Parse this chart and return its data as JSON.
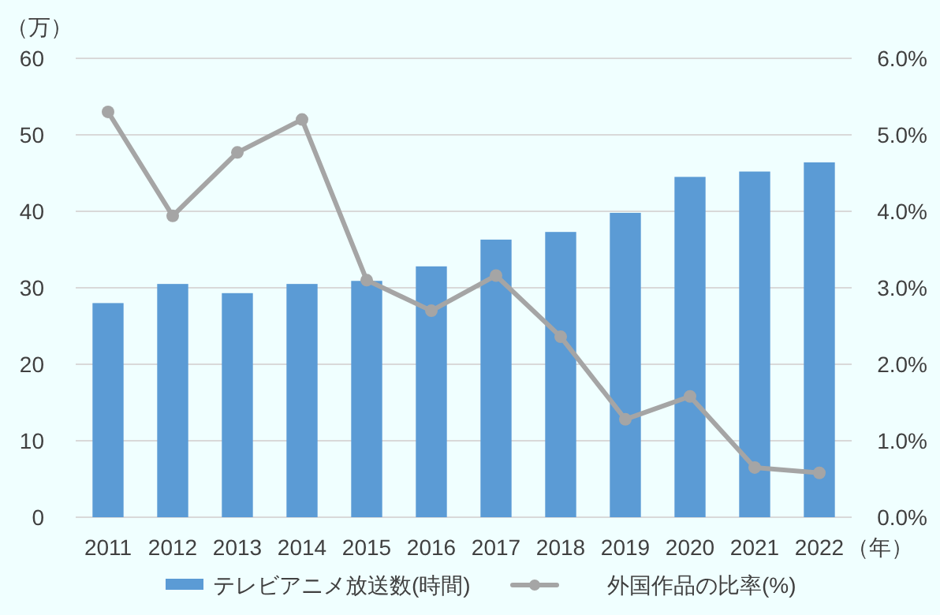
{
  "chart_data": {
    "type": "bar",
    "categories": [
      "2011",
      "2012",
      "2013",
      "2014",
      "2015",
      "2016",
      "2017",
      "2018",
      "2019",
      "2020",
      "2021",
      "2022"
    ],
    "xlabel": "（年）",
    "ylabel": "（万）",
    "series": [
      {
        "name": "テレビアニメ放送数(時間)",
        "color": "#5b9bd5",
        "values": [
          28.0,
          30.5,
          29.3,
          30.5,
          30.9,
          32.8,
          36.3,
          37.3,
          39.8,
          44.5,
          45.2,
          46.4
        ]
      },
      {
        "name": "外国作品の比率(%)",
        "type": "line",
        "axis": "y2",
        "color": "#a5a5a5",
        "marker": "circle",
        "values": [
          5.3,
          3.94,
          4.77,
          5.2,
          3.1,
          2.7,
          3.16,
          2.36,
          1.28,
          1.58,
          0.65,
          0.58
        ]
      }
    ],
    "ylim": [
      0,
      60
    ],
    "yticks": [
      0,
      10,
      20,
      30,
      40,
      50,
      60
    ],
    "y2lim": [
      0,
      6
    ],
    "y2ticks": [
      {
        "value": 0,
        "label": "0.0%"
      },
      {
        "value": 1,
        "label": "1.0%"
      },
      {
        "value": 2,
        "label": "2.0%"
      },
      {
        "value": 3,
        "label": "3.0%"
      },
      {
        "value": 4,
        "label": "4.0%"
      },
      {
        "value": 5,
        "label": "5.0%"
      },
      {
        "value": 6,
        "label": "6.0%"
      }
    ],
    "grid": "y",
    "legend": "bottom"
  }
}
